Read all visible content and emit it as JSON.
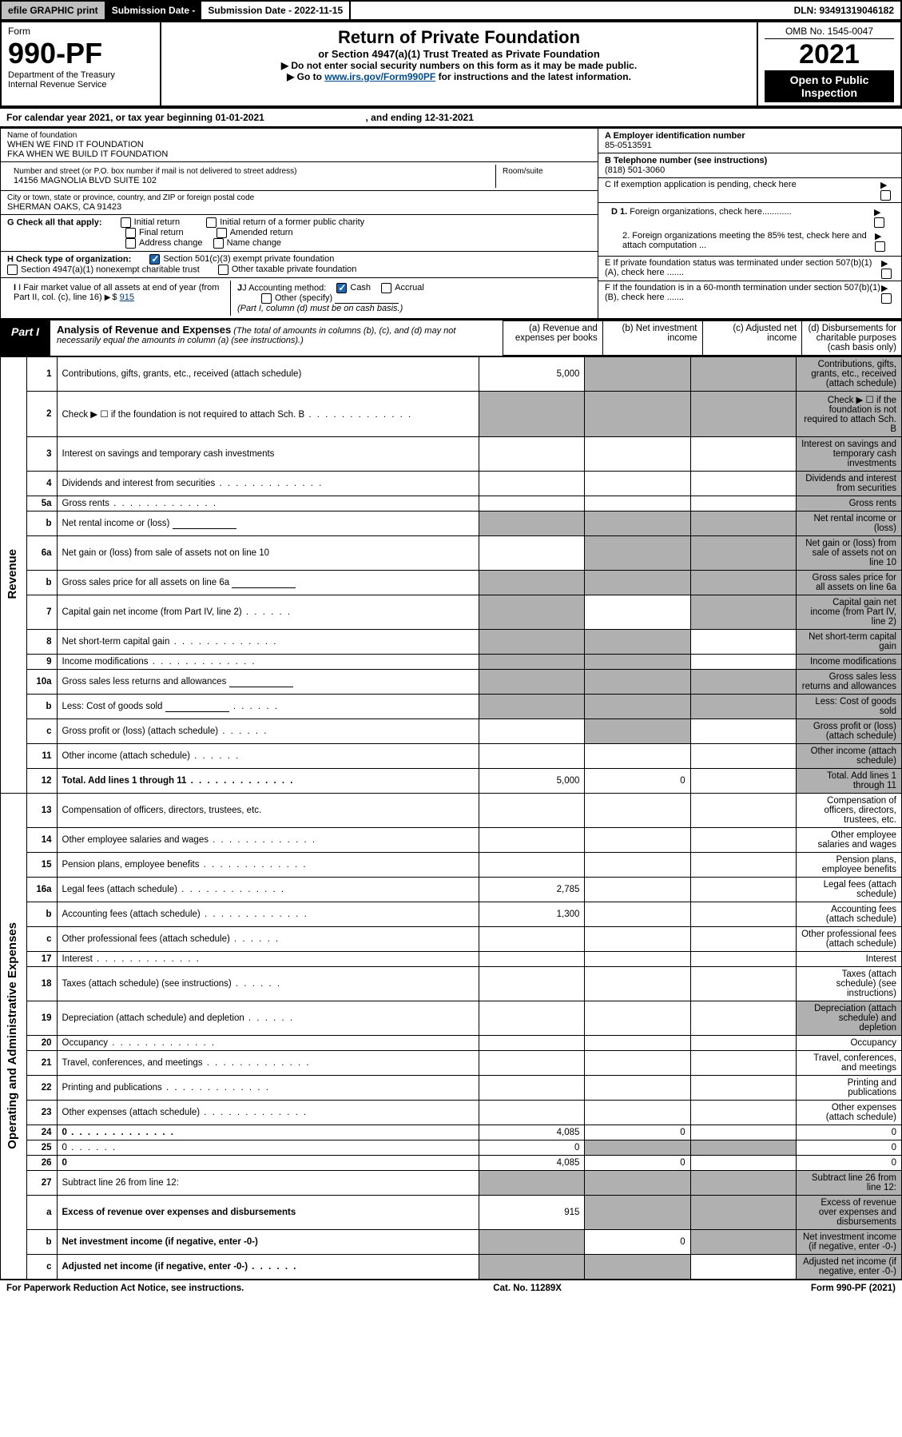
{
  "header_bar": {
    "efile_btn": "efile GRAPHIC print",
    "sub_label": "Submission Date - 2022-11-15",
    "dln": "DLN: 93491319046182"
  },
  "form_header": {
    "form_word": "Form",
    "form_no": "990-PF",
    "dept": "Department of the Treasury",
    "irs": "Internal Revenue Service",
    "title": "Return of Private Foundation",
    "subtitle": "or Section 4947(a)(1) Trust Treated as Private Foundation",
    "instr1": "▶ Do not enter social security numbers on this form as it may be made public.",
    "instr2_pre": "▶ Go to ",
    "instr2_link": "www.irs.gov/Form990PF",
    "instr2_post": " for instructions and the latest information.",
    "omb": "OMB No. 1545-0047",
    "year": "2021",
    "open": "Open to Public Inspection"
  },
  "cal_year": "For calendar year 2021, or tax year beginning 01-01-2021",
  "cal_end": ", and ending 12-31-2021",
  "entity": {
    "name_lbl": "Name of foundation",
    "name1": "WHEN WE FIND IT FOUNDATION",
    "name2": "FKA WHEN WE BUILD IT FOUNDATION",
    "addr_lbl": "Number and street (or P.O. box number if mail is not delivered to street address)",
    "addr": "14156 MAGNOLIA BLVD SUITE 102",
    "room_lbl": "Room/suite",
    "city_lbl": "City or town, state or province, country, and ZIP or foreign postal code",
    "city": "SHERMAN OAKS, CA  91423",
    "ein_lbl": "A Employer identification number",
    "ein": "85-0513591",
    "tel_lbl": "B Telephone number (see instructions)",
    "tel": "(818) 501-3060",
    "c_lbl": "C If exemption application is pending, check here",
    "d1_lbl": "D 1. Foreign organizations, check here............",
    "d2_lbl": "2. Foreign organizations meeting the 85% test, check here and attach computation ...",
    "e_lbl": "E  If private foundation status was terminated under section 507(b)(1)(A), check here .......",
    "f_lbl": "F  If the foundation is in a 60-month termination under section 507(b)(1)(B), check here .......",
    "g_lbl": "G Check all that apply:",
    "g_opts": [
      "Initial return",
      "Final return",
      "Address change",
      "Initial return of a former public charity",
      "Amended return",
      "Name change"
    ],
    "h_lbl": "H Check type of organization:",
    "h_opt1": "Section 501(c)(3) exempt private foundation",
    "h_opt2": "Section 4947(a)(1) nonexempt charitable trust",
    "h_opt3": "Other taxable private foundation",
    "i_lbl": "I Fair market value of all assets at end of year (from Part II, col. (c), line 16)",
    "i_val": "915",
    "j_lbl": "J Accounting method:",
    "j_cash": "Cash",
    "j_accrual": "Accrual",
    "j_other": "Other (specify)",
    "j_note": "(Part I, column (d) must be on cash basis.)"
  },
  "part1": {
    "label": "Part I",
    "title": "Analysis of Revenue and Expenses",
    "title_note": " (The total of amounts in columns (b), (c), and (d) may not necessarily equal the amounts in column (a) (see instructions).)",
    "col_a": "(a)   Revenue and expenses per books",
    "col_b": "(b)   Net investment income",
    "col_c": "(c)   Adjusted net income",
    "col_d": "(d)   Disbursements for charitable purposes (cash basis only)"
  },
  "side_labels": {
    "rev": "Revenue",
    "exp": "Operating and Administrative Expenses"
  },
  "rows": [
    {
      "n": "1",
      "d": "Contributions, gifts, grants, etc., received (attach schedule)",
      "a": "5,000",
      "shade": [
        "b",
        "c",
        "d"
      ]
    },
    {
      "n": "2",
      "d": "Check ▶ ☐ if the foundation is not required to attach Sch. B",
      "dots": true,
      "shade": [
        "a",
        "b",
        "c",
        "d"
      ]
    },
    {
      "n": "3",
      "d": "Interest on savings and temporary cash investments",
      "shade": [
        "d"
      ]
    },
    {
      "n": "4",
      "d": "Dividends and interest from securities",
      "dots": true,
      "shade": [
        "d"
      ]
    },
    {
      "n": "5a",
      "d": "Gross rents",
      "dots": true,
      "shade": [
        "d"
      ]
    },
    {
      "n": "b",
      "d": "Net rental income or (loss)",
      "inline": true,
      "shade": [
        "a",
        "b",
        "c",
        "d"
      ]
    },
    {
      "n": "6a",
      "d": "Net gain or (loss) from sale of assets not on line 10",
      "shade": [
        "b",
        "c",
        "d"
      ]
    },
    {
      "n": "b",
      "d": "Gross sales price for all assets on line 6a",
      "inline": true,
      "shade": [
        "a",
        "b",
        "c",
        "d"
      ]
    },
    {
      "n": "7",
      "d": "Capital gain net income (from Part IV, line 2)",
      "dots": "s",
      "shade": [
        "a",
        "c",
        "d"
      ]
    },
    {
      "n": "8",
      "d": "Net short-term capital gain",
      "dots": true,
      "shade": [
        "a",
        "b",
        "d"
      ]
    },
    {
      "n": "9",
      "d": "Income modifications",
      "dots": true,
      "shade": [
        "a",
        "b",
        "d"
      ]
    },
    {
      "n": "10a",
      "d": "Gross sales less returns and allowances",
      "inline": true,
      "shade": [
        "a",
        "b",
        "c",
        "d"
      ]
    },
    {
      "n": "b",
      "d": "Less: Cost of goods sold",
      "dots": "s",
      "inline": true,
      "shade": [
        "a",
        "b",
        "c",
        "d"
      ]
    },
    {
      "n": "c",
      "d": "Gross profit or (loss) (attach schedule)",
      "dots": "s",
      "shade": [
        "b",
        "d"
      ]
    },
    {
      "n": "11",
      "d": "Other income (attach schedule)",
      "dots": "s",
      "shade": [
        "d"
      ]
    },
    {
      "n": "12",
      "d": "Total. Add lines 1 through 11",
      "dots": true,
      "bold": true,
      "a": "5,000",
      "b": "0",
      "shade": [
        "d"
      ]
    },
    {
      "n": "13",
      "d": "Compensation of officers, directors, trustees, etc."
    },
    {
      "n": "14",
      "d": "Other employee salaries and wages",
      "dots": true
    },
    {
      "n": "15",
      "d": "Pension plans, employee benefits",
      "dots": true
    },
    {
      "n": "16a",
      "d": "Legal fees (attach schedule)",
      "dots": true,
      "a": "2,785"
    },
    {
      "n": "b",
      "d": "Accounting fees (attach schedule)",
      "dots": true,
      "a": "1,300"
    },
    {
      "n": "c",
      "d": "Other professional fees (attach schedule)",
      "dots": "s"
    },
    {
      "n": "17",
      "d": "Interest",
      "dots": true
    },
    {
      "n": "18",
      "d": "Taxes (attach schedule) (see instructions)",
      "dots": "s"
    },
    {
      "n": "19",
      "d": "Depreciation (attach schedule) and depletion",
      "dots": "s",
      "shade": [
        "d"
      ]
    },
    {
      "n": "20",
      "d": "Occupancy",
      "dots": true
    },
    {
      "n": "21",
      "d": "Travel, conferences, and meetings",
      "dots": true
    },
    {
      "n": "22",
      "d": "Printing and publications",
      "dots": true
    },
    {
      "n": "23",
      "d": "Other expenses (attach schedule)",
      "dots": true
    },
    {
      "n": "24",
      "d": "0",
      "dots": true,
      "bold": true,
      "a": "4,085",
      "b": "0"
    },
    {
      "n": "25",
      "d": "0",
      "dots": "s",
      "a": "0",
      "shade": [
        "b",
        "c"
      ]
    },
    {
      "n": "26",
      "d": "0",
      "bold": true,
      "a": "4,085",
      "b": "0"
    },
    {
      "n": "27",
      "d": "Subtract line 26 from line 12:",
      "shade": [
        "a",
        "b",
        "c",
        "d"
      ]
    },
    {
      "n": "a",
      "d": "Excess of revenue over expenses and disbursements",
      "bold": true,
      "a": "915",
      "shade": [
        "b",
        "c",
        "d"
      ]
    },
    {
      "n": "b",
      "d": "Net investment income (if negative, enter -0-)",
      "bold": true,
      "shade": [
        "a"
      ],
      "b": "0",
      "shade2": [
        "c",
        "d"
      ]
    },
    {
      "n": "c",
      "d": "Adjusted net income (if negative, enter -0-)",
      "dots": "s",
      "bold": true,
      "shade": [
        "a",
        "b"
      ],
      "shade2": [
        "d"
      ]
    }
  ],
  "footer": {
    "left": "For Paperwork Reduction Act Notice, see instructions.",
    "mid": "Cat. No. 11289X",
    "right": "Form 990-PF (2021)"
  },
  "colors": {
    "header_grey": "#bfbfbf",
    "shade": "#b0b0b0",
    "link": "#004b8d"
  }
}
